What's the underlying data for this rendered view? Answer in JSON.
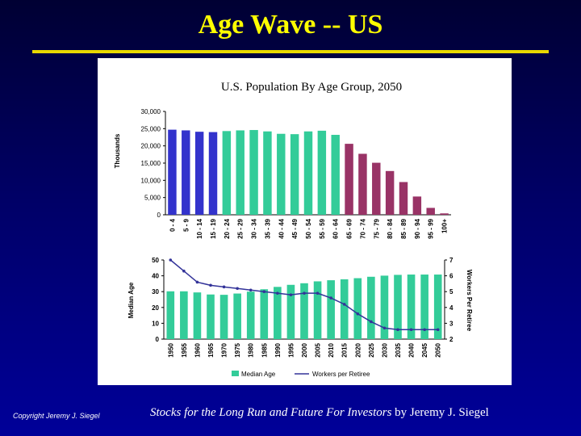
{
  "slide": {
    "title": "Age Wave -- US",
    "footer_left": "Copyright Jeremy J. Siegel",
    "footer_right_italic": "Stocks for the Long Run and Future For Investors",
    "footer_right_plain": "by Jeremy J. Siegel"
  },
  "colors": {
    "slide_title": "#ffff00",
    "young": "#3333cc",
    "working": "#33cc99",
    "retired": "#993366",
    "median_bar": "#33cc99",
    "workers_line": "#333399"
  },
  "chart_data": [
    {
      "type": "bar",
      "title": "U.S. Population By Age Group, 2050",
      "xlabel": "",
      "ylabel": "Thousands",
      "ylim": [
        0,
        30000
      ],
      "yticks": [
        "0",
        "5,000",
        "10,000",
        "15,000",
        "20,000",
        "25,000",
        "30,000"
      ],
      "categories": [
        "0 - 4",
        "5 - 9",
        "10 - 14",
        "15 - 19",
        "20 - 24",
        "25 - 29",
        "30 - 34",
        "35 - 39",
        "40 - 44",
        "45 - 49",
        "50 - 54",
        "55 - 59",
        "60 - 64",
        "65 - 69",
        "70 - 74",
        "75 - 79",
        "80 - 84",
        "85 - 89",
        "90 - 94",
        "95 - 99",
        "100+"
      ],
      "values": [
        24700,
        24500,
        24100,
        24000,
        24300,
        24500,
        24600,
        24200,
        23500,
        23400,
        24200,
        24400,
        23200,
        20600,
        17700,
        15100,
        12700,
        9500,
        5300,
        2000,
        400
      ],
      "groups": [
        "young",
        "young",
        "young",
        "young",
        "working",
        "working",
        "working",
        "working",
        "working",
        "working",
        "working",
        "working",
        "working",
        "retired",
        "retired",
        "retired",
        "retired",
        "retired",
        "retired",
        "retired",
        "retired"
      ]
    },
    {
      "type": "bar",
      "title": "",
      "xlabel": "",
      "ylabel": "Median Age",
      "y2label": "Workers Per Retiree",
      "ylim": [
        0,
        50
      ],
      "y2lim": [
        2,
        7
      ],
      "yticks": [
        "0",
        "10",
        "20",
        "30",
        "40",
        "50"
      ],
      "y2ticks": [
        "2",
        "3",
        "4",
        "5",
        "6",
        "7"
      ],
      "categories": [
        "1950",
        "1955",
        "1960",
        "1965",
        "1970",
        "1975",
        "1980",
        "1985",
        "1990",
        "1995",
        "2000",
        "2005",
        "2010",
        "2015",
        "2020",
        "2025",
        "2030",
        "2035",
        "2040",
        "2045",
        "2050"
      ],
      "series": [
        {
          "name": "Median Age",
          "kind": "bar",
          "values": [
            30.2,
            30.2,
            29.5,
            28.2,
            28.0,
            28.8,
            30.0,
            31.5,
            33.0,
            34.3,
            35.3,
            36.5,
            37.2,
            37.8,
            38.5,
            39.4,
            40.1,
            40.6,
            40.8,
            40.8,
            40.8
          ]
        },
        {
          "name": "Workers per Retiree",
          "kind": "line",
          "values": [
            7.0,
            6.3,
            5.6,
            5.4,
            5.3,
            5.2,
            5.1,
            5.0,
            4.9,
            4.8,
            4.9,
            4.9,
            4.6,
            4.2,
            3.6,
            3.1,
            2.7,
            2.6,
            2.6,
            2.6,
            2.6
          ]
        }
      ],
      "legend": "bottom"
    }
  ]
}
